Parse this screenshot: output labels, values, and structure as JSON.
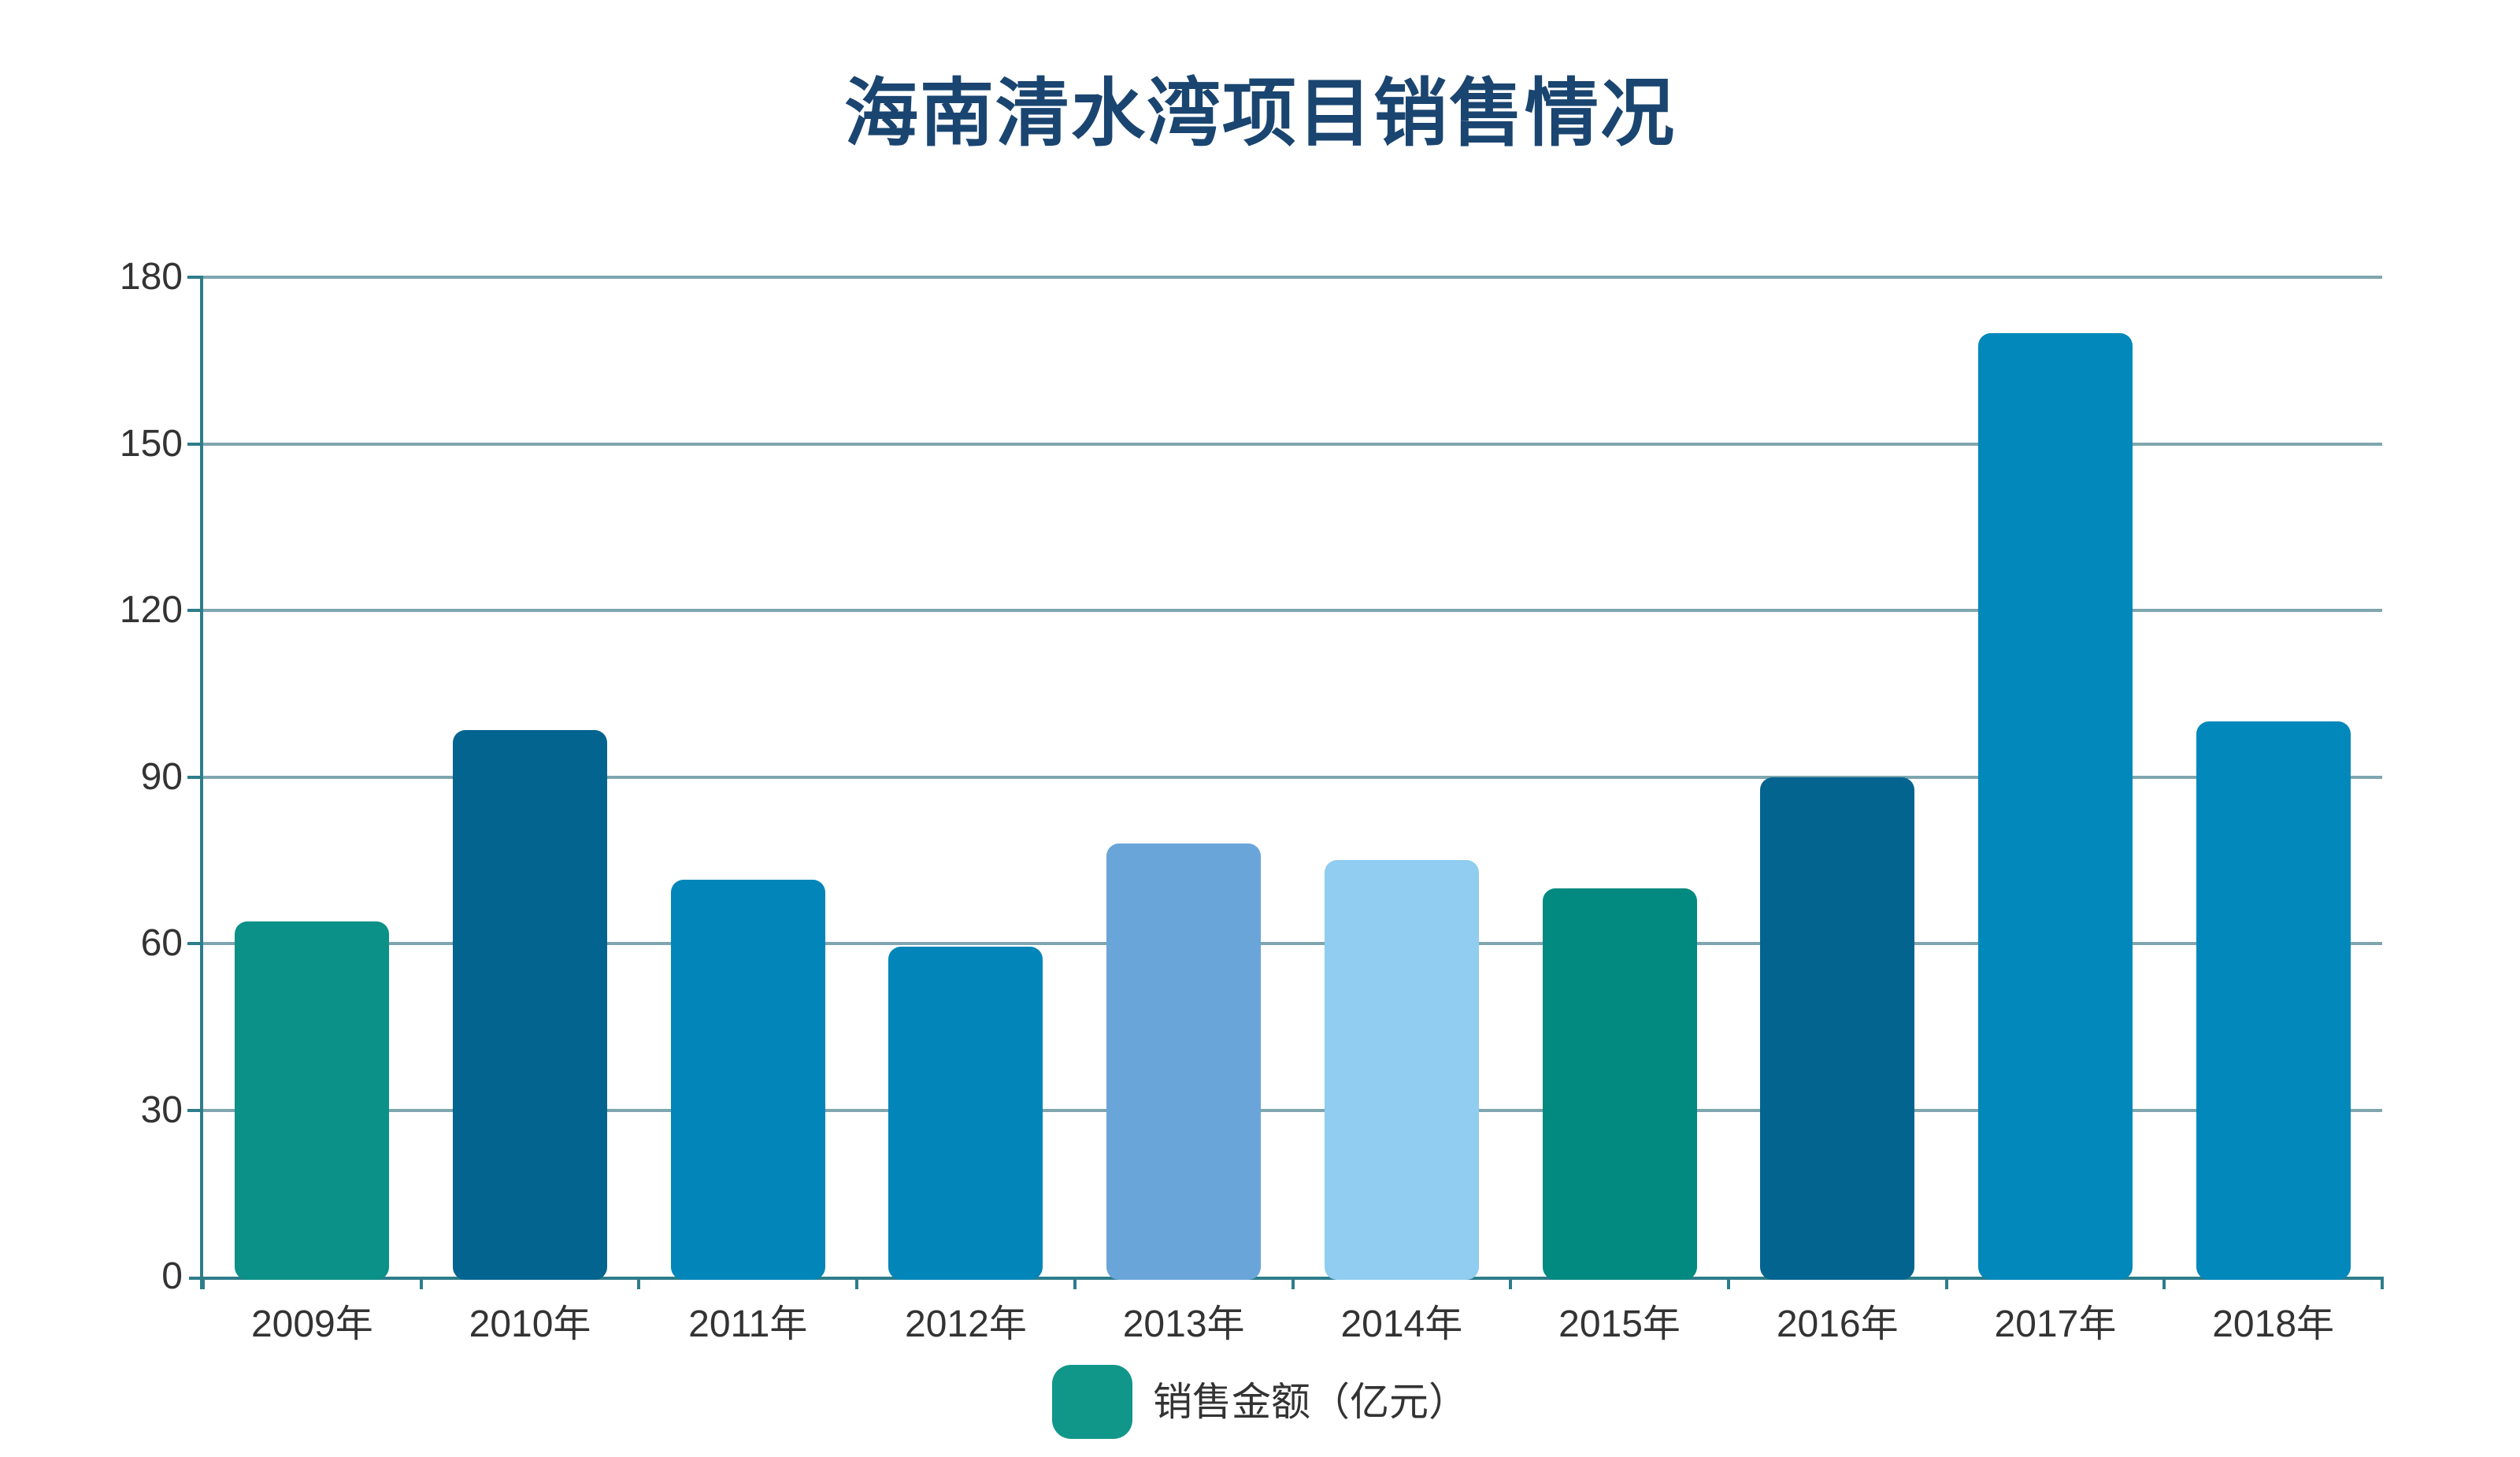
{
  "chart_data": {
    "type": "bar",
    "title": "海南清水湾项目销售情况",
    "legend": "销售金额（亿元）",
    "legend_position": "bottom",
    "categories": [
      "2009年",
      "2010年",
      "2011年",
      "2012年",
      "2013年",
      "2014年",
      "2015年",
      "2016年",
      "2017年",
      "2018年"
    ],
    "values": [
      64,
      98.5,
      71.5,
      59.5,
      78,
      75,
      70,
      90,
      170,
      100
    ],
    "xlabel": "",
    "ylabel": "",
    "ylim": [
      0,
      180
    ],
    "y_ticks": [
      0,
      30,
      60,
      90,
      120,
      150,
      180
    ],
    "grid": true,
    "bar_colors": [
      "#0B9187",
      "#046490",
      "#0286B9",
      "#0286B9",
      "#6AA5DA",
      "#90CDF0",
      "#028A80",
      "#046490",
      "#0288BB",
      "#0288BB"
    ],
    "colors": {
      "title": "#1A4570",
      "axis": "#2E7D8B",
      "gridline": "#7FA6AF",
      "tick_label": "#333333",
      "legend_swatch": "#11968A",
      "background": "#FFFFFF"
    }
  }
}
